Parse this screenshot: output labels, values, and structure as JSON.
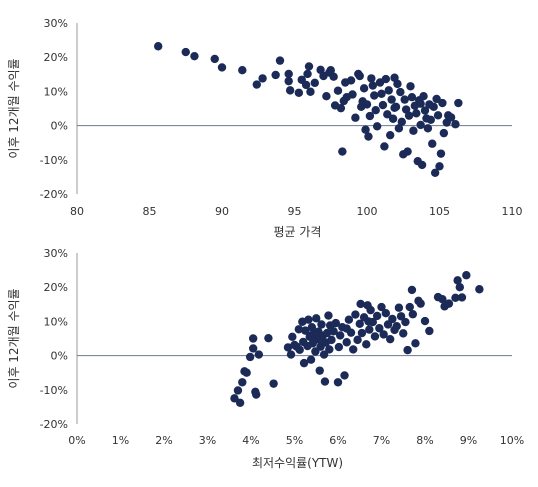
{
  "chart_data": [
    {
      "type": "scatter",
      "xlabel": "평균 가격",
      "ylabel": "이후 12개월 수익률",
      "xlim": [
        80,
        110
      ],
      "ylim": [
        -20,
        30
      ],
      "x_ticks": [
        "80",
        "85",
        "90",
        "95",
        "100",
        "105",
        "110"
      ],
      "y_ticks": [
        "30%",
        "20%",
        "10%",
        "0%",
        "-10%",
        "-20%"
      ],
      "grid": false,
      "zero_line": true,
      "color": "#1b2a56",
      "points": [
        [
          85.6,
          23.2
        ],
        [
          87.5,
          21.5
        ],
        [
          88.1,
          20.3
        ],
        [
          89.5,
          19.5
        ],
        [
          90.0,
          17.0
        ],
        [
          91.4,
          16.2
        ],
        [
          92.4,
          12.0
        ],
        [
          92.8,
          13.8
        ],
        [
          93.7,
          14.8
        ],
        [
          94.0,
          19.0
        ],
        [
          94.6,
          15.1
        ],
        [
          94.6,
          13.0
        ],
        [
          94.7,
          10.3
        ],
        [
          95.3,
          9.6
        ],
        [
          95.5,
          13.4
        ],
        [
          95.8,
          11.9
        ],
        [
          96.0,
          17.3
        ],
        [
          96.1,
          9.9
        ],
        [
          96.4,
          12.5
        ],
        [
          96.8,
          16.3
        ],
        [
          97.0,
          14.5
        ],
        [
          97.2,
          8.6
        ],
        [
          97.4,
          15.5
        ],
        [
          97.5,
          16.2
        ],
        [
          97.7,
          14.3
        ],
        [
          97.8,
          5.9
        ],
        [
          98.0,
          10.2
        ],
        [
          98.2,
          5.1
        ],
        [
          98.3,
          -7.6
        ],
        [
          98.4,
          7.2
        ],
        [
          98.6,
          8.3
        ],
        [
          98.9,
          13.2
        ],
        [
          99.0,
          9.1
        ],
        [
          99.2,
          2.3
        ],
        [
          99.4,
          15.1
        ],
        [
          99.5,
          14.5
        ],
        [
          99.6,
          5.5
        ],
        [
          99.7,
          7.1
        ],
        [
          99.8,
          10.9
        ],
        [
          99.9,
          -1.2
        ],
        [
          100.0,
          6.2
        ],
        [
          100.1,
          -3.2
        ],
        [
          100.2,
          2.8
        ],
        [
          100.4,
          11.7
        ],
        [
          100.5,
          8.8
        ],
        [
          100.6,
          4.5
        ],
        [
          100.7,
          -0.2
        ],
        [
          100.9,
          12.6
        ],
        [
          101.0,
          9.3
        ],
        [
          101.1,
          6.0
        ],
        [
          101.2,
          -6.1
        ],
        [
          101.3,
          13.6
        ],
        [
          101.4,
          3.3
        ],
        [
          101.5,
          10.3
        ],
        [
          101.6,
          -2.8
        ],
        [
          101.7,
          7.6
        ],
        [
          101.8,
          2.0
        ],
        [
          101.9,
          14.0
        ],
        [
          102.0,
          5.5
        ],
        [
          102.1,
          12.2
        ],
        [
          102.2,
          -0.8
        ],
        [
          102.3,
          9.8
        ],
        [
          102.4,
          1.1
        ],
        [
          102.5,
          -8.4
        ],
        [
          102.6,
          7.6
        ],
        [
          102.7,
          4.7
        ],
        [
          102.8,
          -7.6
        ],
        [
          102.9,
          2.9
        ],
        [
          103.0,
          11.5
        ],
        [
          103.1,
          8.3
        ],
        [
          103.2,
          -1.5
        ],
        [
          103.3,
          5.8
        ],
        [
          103.4,
          3.6
        ],
        [
          103.5,
          -10.4
        ],
        [
          103.6,
          7.4
        ],
        [
          103.7,
          0.2
        ],
        [
          103.8,
          -11.5
        ],
        [
          103.9,
          8.6
        ],
        [
          104.0,
          4.4
        ],
        [
          104.1,
          2.1
        ],
        [
          104.2,
          -0.8
        ],
        [
          104.3,
          6.2
        ],
        [
          104.4,
          1.7
        ],
        [
          104.5,
          -5.3
        ],
        [
          104.6,
          5.5
        ],
        [
          104.7,
          -13.8
        ],
        [
          104.8,
          7.8
        ],
        [
          104.9,
          3.0
        ],
        [
          105.0,
          -11.9
        ],
        [
          105.1,
          -8.2
        ],
        [
          105.2,
          6.6
        ],
        [
          105.3,
          -2.2
        ],
        [
          105.5,
          0.9
        ],
        [
          105.6,
          3.0
        ],
        [
          105.8,
          2.4
        ],
        [
          106.1,
          0.4
        ],
        [
          106.3,
          6.6
        ],
        [
          95.9,
          15.1
        ],
        [
          98.5,
          12.6
        ],
        [
          100.3,
          13.8
        ],
        [
          101.9,
          5.2
        ],
        [
          103.7,
          6.4
        ]
      ]
    },
    {
      "type": "scatter",
      "xlabel": "최저수익률(YTW)",
      "ylabel": "이후 12개월 수익률",
      "xlim": [
        0,
        10
      ],
      "ylim": [
        -20,
        30
      ],
      "x_ticks": [
        "0%",
        "1%",
        "2%",
        "3%",
        "4%",
        "5%",
        "6%",
        "7%",
        "8%",
        "9%",
        "10%"
      ],
      "y_ticks": [
        "30%",
        "20%",
        "10%",
        "0%",
        "-10%",
        "-20%"
      ],
      "grid": false,
      "zero_line": true,
      "color": "#1b2a56",
      "points": [
        [
          3.62,
          -12.5
        ],
        [
          3.7,
          -10.2
        ],
        [
          3.75,
          -13.8
        ],
        [
          3.8,
          -7.8
        ],
        [
          3.85,
          -4.6
        ],
        [
          3.9,
          -5.0
        ],
        [
          3.98,
          -0.4
        ],
        [
          4.05,
          2.1
        ],
        [
          4.05,
          5.0
        ],
        [
          4.1,
          -10.6
        ],
        [
          4.12,
          -11.4
        ],
        [
          4.18,
          0.3
        ],
        [
          4.4,
          5.1
        ],
        [
          4.52,
          -8.2
        ],
        [
          4.85,
          2.4
        ],
        [
          4.92,
          0.3
        ],
        [
          4.95,
          5.5
        ],
        [
          5.0,
          3.1
        ],
        [
          5.05,
          2.6
        ],
        [
          5.1,
          7.7
        ],
        [
          5.12,
          1.7
        ],
        [
          5.18,
          9.9
        ],
        [
          5.2,
          4.0
        ],
        [
          5.22,
          -2.2
        ],
        [
          5.25,
          7.3
        ],
        [
          5.3,
          2.8
        ],
        [
          5.32,
          10.5
        ],
        [
          5.35,
          5.5
        ],
        [
          5.38,
          -1.2
        ],
        [
          5.4,
          8.3
        ],
        [
          5.42,
          3.6
        ],
        [
          5.45,
          6.1
        ],
        [
          5.48,
          1.2
        ],
        [
          5.5,
          10.9
        ],
        [
          5.52,
          4.8
        ],
        [
          5.55,
          7.0
        ],
        [
          5.58,
          -4.4
        ],
        [
          5.6,
          2.6
        ],
        [
          5.62,
          9.1
        ],
        [
          5.65,
          5.8
        ],
        [
          5.68,
          0.3
        ],
        [
          5.7,
          -7.6
        ],
        [
          5.72,
          3.8
        ],
        [
          5.75,
          6.6
        ],
        [
          5.78,
          11.7
        ],
        [
          5.8,
          1.8
        ],
        [
          5.82,
          8.8
        ],
        [
          5.85,
          4.6
        ],
        [
          5.9,
          7.1
        ],
        [
          5.95,
          9.5
        ],
        [
          6.0,
          -7.8
        ],
        [
          6.02,
          2.5
        ],
        [
          6.05,
          5.9
        ],
        [
          6.1,
          8.3
        ],
        [
          6.15,
          -5.8
        ],
        [
          6.2,
          3.9
        ],
        [
          6.25,
          10.5
        ],
        [
          6.3,
          6.7
        ],
        [
          6.35,
          1.8
        ],
        [
          6.4,
          12.0
        ],
        [
          6.45,
          4.6
        ],
        [
          6.5,
          9.3
        ],
        [
          6.52,
          15.1
        ],
        [
          6.55,
          6.6
        ],
        [
          6.6,
          11.2
        ],
        [
          6.65,
          3.3
        ],
        [
          6.68,
          14.7
        ],
        [
          6.72,
          7.6
        ],
        [
          6.75,
          13.3
        ],
        [
          6.8,
          9.8
        ],
        [
          6.85,
          5.6
        ],
        [
          6.9,
          11.6
        ],
        [
          6.95,
          8.0
        ],
        [
          7.0,
          14.2
        ],
        [
          7.05,
          6.2
        ],
        [
          7.1,
          12.4
        ],
        [
          7.15,
          9.1
        ],
        [
          7.2,
          4.8
        ],
        [
          7.25,
          10.7
        ],
        [
          7.3,
          7.5
        ],
        [
          7.4,
          14.0
        ],
        [
          7.45,
          11.5
        ],
        [
          7.5,
          6.5
        ],
        [
          7.55,
          9.8
        ],
        [
          7.6,
          1.6
        ],
        [
          7.65,
          14.2
        ],
        [
          7.7,
          19.2
        ],
        [
          7.72,
          12.1
        ],
        [
          7.78,
          3.6
        ],
        [
          7.85,
          16.0
        ],
        [
          7.9,
          15.2
        ],
        [
          8.0,
          10.1
        ],
        [
          8.1,
          7.2
        ],
        [
          8.3,
          17.1
        ],
        [
          8.4,
          16.5
        ],
        [
          8.45,
          14.4
        ],
        [
          8.55,
          15.2
        ],
        [
          8.7,
          16.9
        ],
        [
          8.75,
          22.0
        ],
        [
          8.8,
          20.0
        ],
        [
          8.85,
          17.0
        ],
        [
          8.95,
          23.5
        ],
        [
          9.25,
          19.4
        ],
        [
          5.4,
          6.0
        ],
        [
          6.2,
          7.9
        ],
        [
          6.7,
          10.0
        ],
        [
          7.35,
          8.6
        ],
        [
          5.6,
          4.4
        ]
      ]
    }
  ]
}
